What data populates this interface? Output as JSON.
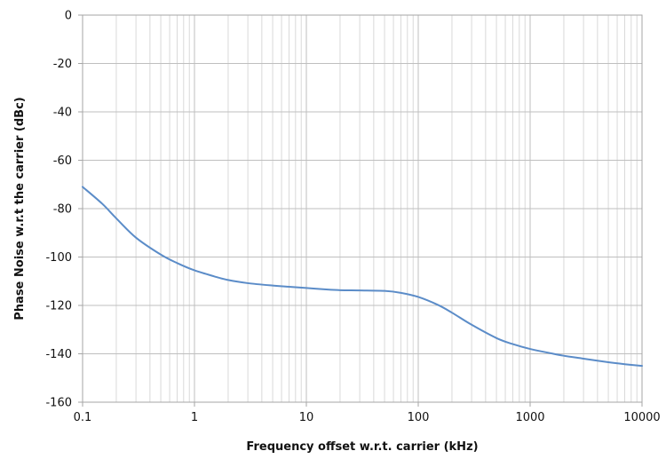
{
  "chart_data": {
    "type": "line",
    "title": "",
    "xlabel": "Frequency offset w.r.t. carrier (kHz)",
    "ylabel": "Phase Noise w.r.t the carrier (dBc)",
    "xscale": "log",
    "xlim": [
      0.1,
      10000
    ],
    "ylim": [
      -160,
      0
    ],
    "x_ticks": [
      0.1,
      1,
      10,
      100,
      1000,
      10000
    ],
    "x_tick_labels": [
      "0.1",
      "1",
      "10",
      "100",
      "1000",
      "10000"
    ],
    "y_ticks": [
      0,
      -20,
      -40,
      -60,
      -80,
      -100,
      -120,
      -140,
      -160
    ],
    "y_tick_labels": [
      "0",
      "-20",
      "-40",
      "-60",
      "-80",
      "-100",
      "-120",
      "-140",
      "-160"
    ],
    "grid": true,
    "legend": "none",
    "series": [
      {
        "color": "#5b8cc8",
        "x": [
          0.1,
          0.15,
          0.2,
          0.3,
          0.5,
          0.7,
          1,
          1.5,
          2,
          3,
          5,
          7,
          10,
          15,
          20,
          30,
          50,
          70,
          100,
          150,
          200,
          300,
          500,
          700,
          1000,
          1500,
          2000,
          3000,
          5000,
          7000,
          10000
        ],
        "y": [
          -71,
          -78,
          -84,
          -92,
          -99,
          -102.5,
          -105.5,
          -108,
          -109.5,
          -110.8,
          -111.8,
          -112.3,
          -112.8,
          -113.4,
          -113.7,
          -113.8,
          -114,
          -114.8,
          -116.5,
          -119.8,
          -123,
          -128,
          -133.5,
          -136,
          -138,
          -139.7,
          -140.8,
          -142,
          -143.5,
          -144.3,
          -145
        ]
      }
    ]
  }
}
